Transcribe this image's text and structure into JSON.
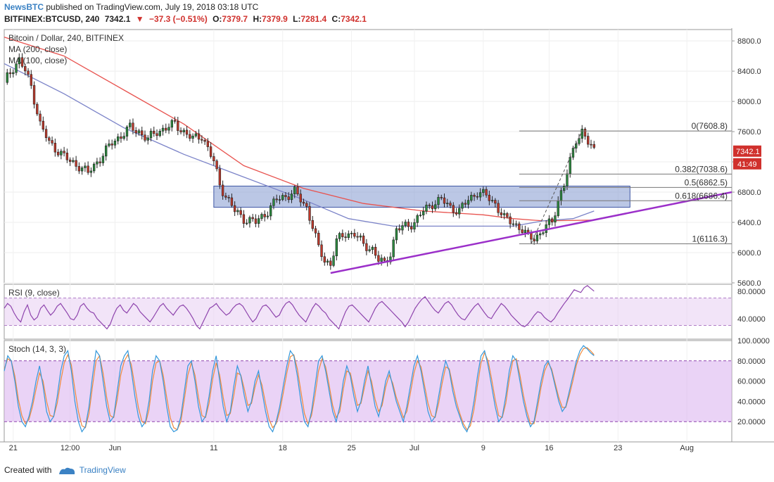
{
  "header": {
    "publisher": "NewsBTC",
    "published_text": "published on TradingView.com, July 19, 2018 03:18 UTC",
    "symbol": "BITFINEX:BTCUSD, 240",
    "last": "7342.1",
    "change_arrow": "▼",
    "change": "−37.3 (−0.51%)",
    "open_label": "O:",
    "open": "7379.7",
    "high_label": "H:",
    "high": "7379.9",
    "low_label": "L:",
    "low": "7281.4",
    "close_label": "C:",
    "close": "7342.1"
  },
  "footer": {
    "created_with": "Created with",
    "brand": "TradingView"
  },
  "chart_data": {
    "type": "candlestick",
    "title": "Bitcoin / Dollar, 240, BITFINEX",
    "indicators_legend": [
      "MA (200, close)",
      "MA (100, close)"
    ],
    "y_axis": {
      "ticks": [
        "5600.0",
        "6000.0",
        "6400.0",
        "6800.0",
        "7200.0",
        "7600.0",
        "8000.0",
        "8400.0",
        "8800.0"
      ],
      "ylim": [
        5600,
        8950
      ]
    },
    "x_axis": {
      "ticks": [
        "21",
        "12:00",
        "Jun",
        "11",
        "18",
        "25",
        "Jul",
        "9",
        "16",
        "23",
        "Aug"
      ]
    },
    "last_price_label": "7342.1",
    "countdown_label": "41:49",
    "price_path": [
      [
        0,
        8250
      ],
      [
        3,
        8450
      ],
      [
        5,
        8550
      ],
      [
        7,
        8400
      ],
      [
        9,
        8200
      ],
      [
        12,
        7700
      ],
      [
        15,
        7450
      ],
      [
        18,
        7350
      ],
      [
        22,
        7200
      ],
      [
        25,
        7150
      ],
      [
        28,
        7050
      ],
      [
        30,
        7150
      ],
      [
        33,
        7300
      ],
      [
        36,
        7450
      ],
      [
        39,
        7550
      ],
      [
        42,
        7650
      ],
      [
        45,
        7600
      ],
      [
        48,
        7500
      ],
      [
        51,
        7600
      ],
      [
        54,
        7650
      ],
      [
        57,
        7700
      ],
      [
        60,
        7600
      ],
      [
        63,
        7500
      ],
      [
        66,
        7550
      ],
      [
        70,
        7200
      ],
      [
        72,
        6900
      ],
      [
        74,
        6750
      ],
      [
        77,
        6550
      ],
      [
        80,
        6450
      ],
      [
        84,
        6400
      ],
      [
        88,
        6550
      ],
      [
        91,
        6700
      ],
      [
        94,
        6750
      ],
      [
        97,
        6800
      ],
      [
        101,
        6600
      ],
      [
        103,
        6350
      ],
      [
        105,
        6050
      ],
      [
        107,
        5900
      ],
      [
        109,
        5850
      ],
      [
        111,
        6150
      ],
      [
        114,
        6250
      ],
      [
        117,
        6250
      ],
      [
        120,
        6100
      ],
      [
        123,
        6050
      ],
      [
        125,
        5900
      ],
      [
        127,
        5850
      ],
      [
        129,
        6000
      ],
      [
        131,
        6300
      ],
      [
        134,
        6350
      ],
      [
        137,
        6400
      ],
      [
        140,
        6550
      ],
      [
        143,
        6650
      ],
      [
        146,
        6700
      ],
      [
        149,
        6600
      ],
      [
        152,
        6550
      ],
      [
        155,
        6700
      ],
      [
        158,
        6800
      ],
      [
        161,
        6750
      ],
      [
        164,
        6650
      ],
      [
        167,
        6450
      ],
      [
        170,
        6400
      ],
      [
        173,
        6300
      ],
      [
        175,
        6200
      ],
      [
        177,
        6200
      ],
      [
        179,
        6250
      ],
      [
        181,
        6350
      ],
      [
        183,
        6400
      ],
      [
        185,
        6700
      ],
      [
        187,
        6900
      ],
      [
        189,
        7200
      ],
      [
        191,
        7500
      ],
      [
        193,
        7608.8
      ],
      [
        195,
        7450
      ],
      [
        197,
        7342.1
      ]
    ],
    "ma200": [
      [
        0,
        8850
      ],
      [
        20,
        8600
      ],
      [
        40,
        8150
      ],
      [
        60,
        7700
      ],
      [
        80,
        7150
      ],
      [
        100,
        6850
      ],
      [
        120,
        6650
      ],
      [
        140,
        6550
      ],
      [
        160,
        6500
      ],
      [
        170,
        6450
      ],
      [
        180,
        6420
      ],
      [
        197,
        6430
      ]
    ],
    "ma100": [
      [
        0,
        8500
      ],
      [
        20,
        8100
      ],
      [
        40,
        7650
      ],
      [
        60,
        7300
      ],
      [
        80,
        7000
      ],
      [
        100,
        6700
      ],
      [
        115,
        6450
      ],
      [
        130,
        6350
      ],
      [
        150,
        6350
      ],
      [
        170,
        6350
      ],
      [
        180,
        6420
      ],
      [
        190,
        6450
      ],
      [
        197,
        6550
      ]
    ],
    "resistance_zone": {
      "from_index": 70,
      "to_index": 209,
      "low": 6600,
      "high": 6880
    },
    "trendline": {
      "start": [
        109,
        5730
      ],
      "end": [
        243,
        6800
      ]
    },
    "fibonacci": {
      "from_index": 172,
      "to_index": 243,
      "levels": [
        {
          "label": "0(7608.8)",
          "price": 7608.8
        },
        {
          "label": "0.382(7038.6)",
          "price": 7038.6
        },
        {
          "label": "0.5(6862.5)",
          "price": 6862.5
        },
        {
          "label": "0.618(6686.4)",
          "price": 6686.4
        },
        {
          "label": "1(6116.3)",
          "price": 6116.3
        }
      ]
    },
    "rsi": {
      "title": "RSI (9, close)",
      "ticks": [
        "80.0000",
        "40.0000"
      ],
      "band_top": 70,
      "band_bottom": 30,
      "ylim": [
        10,
        90
      ],
      "values": [
        55,
        62,
        58,
        48,
        40,
        35,
        50,
        60,
        45,
        38,
        42,
        55,
        60,
        52,
        45,
        50,
        58,
        62,
        55,
        48,
        40,
        38,
        45,
        58,
        62,
        55,
        50,
        48,
        40,
        35,
        30,
        25,
        32,
        45,
        55,
        60,
        52,
        48,
        55,
        62,
        58,
        50,
        45,
        40,
        35,
        42,
        50,
        58,
        62,
        55,
        50,
        45,
        52,
        58,
        60,
        55,
        48,
        40,
        30,
        25,
        35,
        45,
        55,
        58,
        62,
        55,
        50,
        45,
        48,
        55,
        60,
        62,
        58,
        50,
        42,
        35,
        40,
        50,
        58,
        60,
        55,
        48,
        42,
        45,
        55,
        62,
        65,
        60,
        52,
        45,
        40,
        35,
        45,
        55,
        62,
        58,
        52,
        48,
        40,
        35,
        30,
        25,
        38,
        50,
        58,
        60,
        55,
        50,
        45,
        40,
        35,
        45,
        55,
        62,
        65,
        60,
        55,
        50,
        45,
        40,
        35,
        28,
        35,
        45,
        55,
        62,
        68,
        72,
        65,
        58,
        52,
        48,
        55,
        62,
        65,
        60,
        52,
        45,
        40,
        38,
        45,
        52,
        58,
        62,
        55,
        48,
        42,
        40,
        48,
        55,
        62,
        58,
        52,
        45,
        40,
        35,
        30,
        28,
        32,
        38,
        45,
        50,
        48,
        42,
        38,
        35,
        40,
        48,
        55,
        62,
        68,
        75,
        82,
        80,
        78,
        85,
        88,
        84,
        80
      ]
    },
    "stoch": {
      "title": "Stoch (14, 3, 3)",
      "ticks": [
        "100.0000",
        "80.0000",
        "60.0000",
        "40.0000",
        "20.0000"
      ],
      "band_top": 80,
      "band_bottom": 20,
      "ylim": [
        0,
        100
      ],
      "k": [
        70,
        85,
        80,
        60,
        35,
        20,
        15,
        25,
        40,
        60,
        75,
        55,
        30,
        20,
        25,
        45,
        70,
        85,
        90,
        70,
        40,
        20,
        10,
        15,
        35,
        65,
        90,
        85,
        60,
        35,
        20,
        25,
        50,
        75,
        85,
        90,
        70,
        45,
        25,
        15,
        20,
        40,
        70,
        85,
        80,
        60,
        35,
        15,
        10,
        12,
        25,
        50,
        75,
        80,
        60,
        35,
        20,
        25,
        45,
        70,
        85,
        60,
        35,
        20,
        30,
        55,
        75,
        65,
        45,
        30,
        40,
        60,
        70,
        50,
        30,
        15,
        10,
        20,
        35,
        55,
        75,
        90,
        85,
        65,
        40,
        20,
        15,
        30,
        55,
        80,
        85,
        70,
        50,
        30,
        20,
        35,
        60,
        75,
        65,
        45,
        30,
        40,
        60,
        75,
        55,
        35,
        25,
        40,
        60,
        70,
        55,
        40,
        30,
        20,
        35,
        55,
        75,
        85,
        70,
        50,
        30,
        20,
        25,
        45,
        65,
        80,
        70,
        50,
        35,
        25,
        15,
        10,
        20,
        40,
        65,
        85,
        90,
        75,
        55,
        35,
        20,
        25,
        45,
        70,
        85,
        80,
        60,
        40,
        25,
        15,
        20,
        40,
        60,
        75,
        80,
        70,
        55,
        40,
        30,
        35,
        50,
        65,
        80,
        90,
        95,
        92,
        88,
        85
      ],
      "d": [
        72,
        82,
        80,
        65,
        42,
        26,
        18,
        22,
        35,
        52,
        68,
        60,
        40,
        26,
        25,
        38,
        60,
        78,
        86,
        76,
        52,
        30,
        16,
        14,
        28,
        55,
        80,
        85,
        68,
        44,
        26,
        24,
        42,
        66,
        80,
        86,
        76,
        55,
        34,
        20,
        18,
        32,
        60,
        78,
        80,
        66,
        44,
        24,
        14,
        12,
        20,
        42,
        66,
        78,
        66,
        44,
        26,
        24,
        38,
        62,
        78,
        66,
        44,
        26,
        28,
        46,
        68,
        66,
        52,
        36,
        38,
        54,
        66,
        56,
        38,
        22,
        14,
        18,
        30,
        48,
        68,
        84,
        86,
        72,
        50,
        28,
        18,
        26,
        46,
        70,
        82,
        74,
        56,
        36,
        24,
        30,
        52,
        70,
        68,
        52,
        36,
        38,
        54,
        70,
        60,
        42,
        30,
        36,
        54,
        66,
        58,
        44,
        34,
        24,
        30,
        48,
        68,
        80,
        74,
        56,
        38,
        26,
        24,
        38,
        58,
        74,
        72,
        56,
        40,
        28,
        18,
        12,
        16,
        32,
        56,
        78,
        88,
        80,
        62,
        42,
        26,
        24,
        38,
        62,
        80,
        82,
        66,
        46,
        30,
        18,
        18,
        34,
        54,
        70,
        78,
        72,
        58,
        44,
        34,
        34,
        46,
        60,
        76,
        86,
        92,
        93,
        90,
        86
      ]
    }
  }
}
